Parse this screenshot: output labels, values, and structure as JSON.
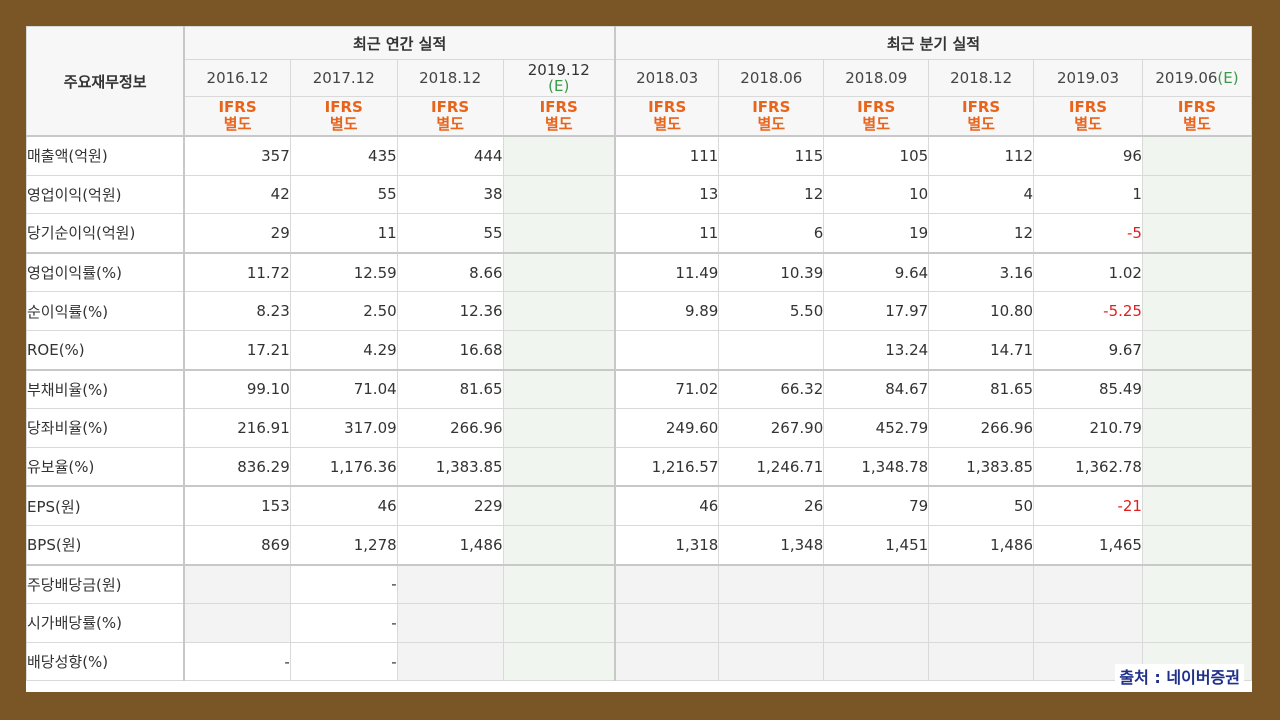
{
  "header": {
    "corner_label": "주요재무정보",
    "annual_group": "최근 연간 실적",
    "quarter_group": "최근 분기 실적"
  },
  "periods": [
    {
      "label": "2016.12",
      "acct1": "IFRS",
      "acct2": "별도"
    },
    {
      "label": "2017.12",
      "acct1": "IFRS",
      "acct2": "별도"
    },
    {
      "label": "2018.12",
      "acct1": "IFRS",
      "acct2": "별도"
    },
    {
      "label": "2019.12",
      "est": "(E)",
      "acct1": "IFRS",
      "acct2": "별도"
    },
    {
      "label": "2018.03",
      "acct1": "IFRS",
      "acct2": "별도"
    },
    {
      "label": "2018.06",
      "acct1": "IFRS",
      "acct2": "별도"
    },
    {
      "label": "2018.09",
      "acct1": "IFRS",
      "acct2": "별도"
    },
    {
      "label": "2018.12",
      "acct1": "IFRS",
      "acct2": "별도"
    },
    {
      "label": "2019.03",
      "acct1": "IFRS",
      "acct2": "별도"
    },
    {
      "label": "2019.06",
      "est": "(E)",
      "acct1": "IFRS",
      "acct2": "별도"
    }
  ],
  "rows": [
    {
      "label": "매출액(억원)",
      "values": [
        "357",
        "435",
        "444",
        "",
        "111",
        "115",
        "105",
        "112",
        "96",
        ""
      ]
    },
    {
      "label": "영업이익(억원)",
      "values": [
        "42",
        "55",
        "38",
        "",
        "13",
        "12",
        "10",
        "4",
        "1",
        ""
      ]
    },
    {
      "label": "당기순이익(억원)",
      "values": [
        "29",
        "11",
        "55",
        "",
        "11",
        "6",
        "19",
        "12",
        "-5",
        ""
      ]
    },
    {
      "label": "영업이익률(%)",
      "values": [
        "11.72",
        "12.59",
        "8.66",
        "",
        "11.49",
        "10.39",
        "9.64",
        "3.16",
        "1.02",
        ""
      ]
    },
    {
      "label": "순이익률(%)",
      "values": [
        "8.23",
        "2.50",
        "12.36",
        "",
        "9.89",
        "5.50",
        "17.97",
        "10.80",
        "-5.25",
        ""
      ]
    },
    {
      "label": "ROE(%)",
      "values": [
        "17.21",
        "4.29",
        "16.68",
        "",
        "",
        "",
        "13.24",
        "14.71",
        "9.67",
        ""
      ]
    },
    {
      "label": "부채비율(%)",
      "values": [
        "99.10",
        "71.04",
        "81.65",
        "",
        "71.02",
        "66.32",
        "84.67",
        "81.65",
        "85.49",
        ""
      ]
    },
    {
      "label": "당좌비율(%)",
      "values": [
        "216.91",
        "317.09",
        "266.96",
        "",
        "249.60",
        "267.90",
        "452.79",
        "266.96",
        "210.79",
        ""
      ]
    },
    {
      "label": "유보율(%)",
      "values": [
        "836.29",
        "1,176.36",
        "1,383.85",
        "",
        "1,216.57",
        "1,246.71",
        "1,348.78",
        "1,383.85",
        "1,362.78",
        ""
      ]
    },
    {
      "label": "EPS(원)",
      "values": [
        "153",
        "46",
        "229",
        "",
        "46",
        "26",
        "79",
        "50",
        "-21",
        ""
      ]
    },
    {
      "label": "BPS(원)",
      "values": [
        "869",
        "1,278",
        "1,486",
        "",
        "1,318",
        "1,348",
        "1,451",
        "1,486",
        "1,465",
        ""
      ]
    },
    {
      "label": "주당배당금(원)",
      "values": [
        "",
        "-",
        "",
        "",
        "",
        "",
        "",
        "",
        "",
        ""
      ]
    },
    {
      "label": "시가배당률(%)",
      "values": [
        "",
        "-",
        "",
        "",
        "",
        "",
        "",
        "",
        "",
        ""
      ]
    },
    {
      "label": "배당성향(%)",
      "values": [
        "-",
        "-",
        "",
        "",
        "",
        "",
        "",
        "",
        "",
        ""
      ]
    }
  ],
  "source": "출처 : 네이버증권",
  "colors": {
    "frame": "#7a5526",
    "accounting": "#e8641b",
    "estimate": "#3a9a4a",
    "negative": "#e02020",
    "source": "#1f2f8c"
  }
}
